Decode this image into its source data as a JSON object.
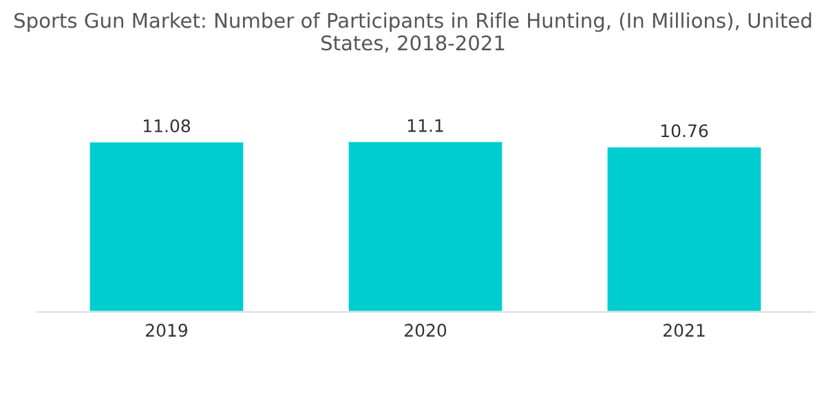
{
  "chart_data": {
    "type": "bar",
    "title": "Sports Gun Market: Number of Participants in Rifle Hunting, (In Millions), United States, 2018-2021",
    "categories": [
      "2019",
      "2020",
      "2021"
    ],
    "values": [
      11.08,
      11.1,
      10.76
    ],
    "color": "#00cdd0",
    "data_labels": true,
    "grid": false,
    "legend": false
  }
}
